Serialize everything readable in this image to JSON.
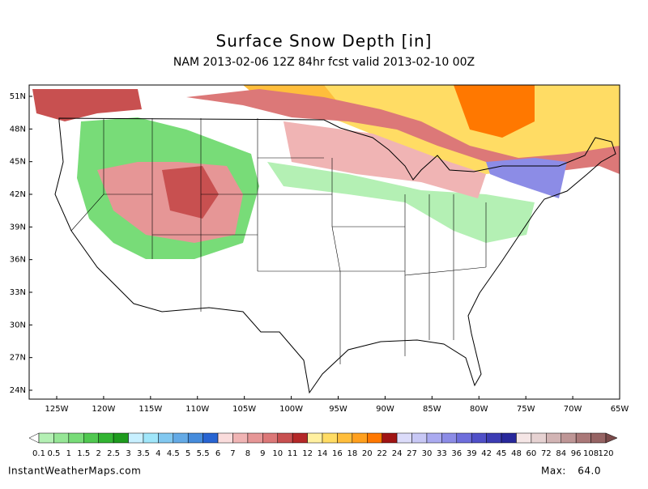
{
  "header": {
    "title": "Surface Snow Depth [in]",
    "subtitle": "NAM 2013-02-06 12Z 84hr fcst valid 2013-02-10 00Z"
  },
  "map": {
    "lat_labels": [
      "51N",
      "48N",
      "45N",
      "42N",
      "39N",
      "36N",
      "33N",
      "30N",
      "27N",
      "24N"
    ],
    "lon_labels": [
      "125W",
      "120W",
      "115W",
      "110W",
      "105W",
      "100W",
      "95W",
      "90W",
      "85W",
      "80W",
      "75W",
      "70W",
      "65W"
    ]
  },
  "colorbar": {
    "labels": [
      "0.1",
      "0.5",
      "1",
      "1.5",
      "2",
      "2.5",
      "3",
      "3.5",
      "4",
      "4.5",
      "5",
      "5.5",
      "6",
      "7",
      "8",
      "9",
      "10",
      "11",
      "12",
      "14",
      "16",
      "18",
      "20",
      "22",
      "24",
      "27",
      "30",
      "33",
      "36",
      "39",
      "42",
      "45",
      "48",
      "60",
      "72",
      "84",
      "96",
      "108",
      "120"
    ],
    "colors": [
      "#b4f0b4",
      "#96e696",
      "#78dc78",
      "#50c850",
      "#32b432",
      "#1e9b1e",
      "#c8f0ff",
      "#a0e6fa",
      "#82c8f0",
      "#64aae6",
      "#468cdc",
      "#2864d2",
      "#fadcdc",
      "#f0b4b4",
      "#e69696",
      "#dc7878",
      "#c85050",
      "#b42828",
      "#fff0a0",
      "#ffdc64",
      "#ffbe3c",
      "#ffa01e",
      "#ff7800",
      "#a01414",
      "#dcdcfa",
      "#c8c8f5",
      "#aaaaf0",
      "#8c8ce6",
      "#6e6edc",
      "#5050c8",
      "#3c3cb4",
      "#28289b",
      "#f5e6e6",
      "#e6d2d2",
      "#d2b4b4",
      "#be9696",
      "#aa7878",
      "#966464"
    ],
    "under_color": "#ffffff",
    "over_color": "#7a4a4a"
  },
  "footer": {
    "source": "InstantWeatherMaps.com",
    "max_label": "Max:",
    "max_value": "64.0"
  }
}
